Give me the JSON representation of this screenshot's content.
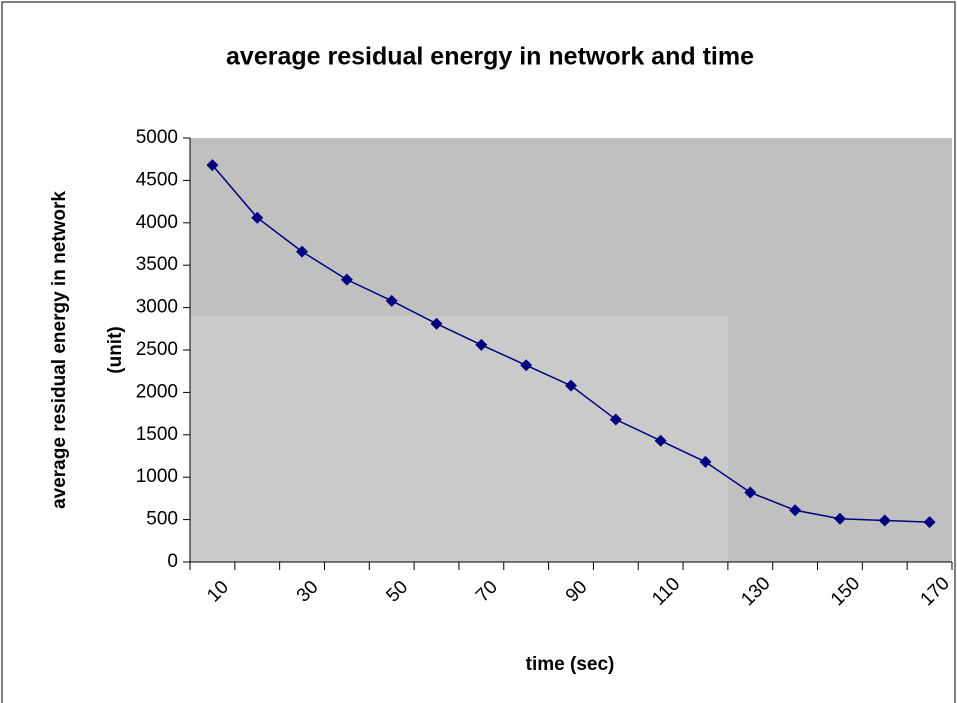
{
  "chart_data": {
    "type": "line",
    "title": "average residual energy in network and time",
    "xlabel": "time (sec)",
    "ylabel": [
      "average residual energy in network",
      "(unit)"
    ],
    "categories": [
      10,
      null,
      30,
      null,
      50,
      null,
      70,
      null,
      90,
      null,
      110,
      null,
      130,
      null,
      150,
      null,
      170
    ],
    "series": [
      {
        "color": "#000080",
        "values": [
          4680,
          4060,
          3660,
          3330,
          3080,
          2810,
          2560,
          2320,
          2080,
          1680,
          1430,
          1180,
          820,
          610,
          510,
          490,
          470
        ]
      }
    ],
    "ylim": [
      0,
      5000
    ],
    "yticks": [
      0,
      500,
      1000,
      1500,
      2000,
      2500,
      3000,
      3500,
      4000,
      4500,
      5000
    ]
  }
}
